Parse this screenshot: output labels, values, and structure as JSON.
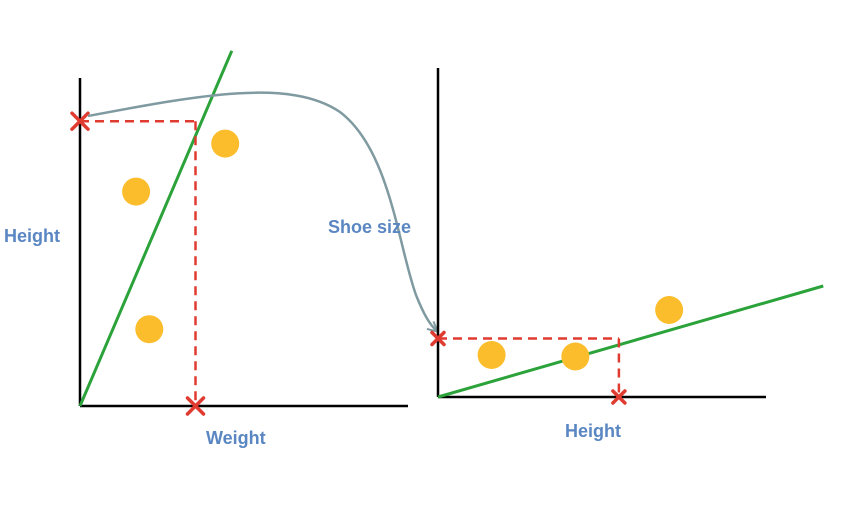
{
  "colors": {
    "axis": "#000000",
    "fit_line": "#2ca33a",
    "points": "#fbbd2b",
    "projection": "#e03b30",
    "marker": "#e03b30",
    "arrow": "#7f9aa0",
    "label": "#5a86c2"
  },
  "left_plot": {
    "y_label": "Height",
    "x_label": "Weight",
    "points": [
      {
        "weight": 1.7,
        "height": 6.7
      },
      {
        "weight": 4.4,
        "height": 8.2
      },
      {
        "weight": 2.1,
        "height": 2.4
      }
    ],
    "fit_line": [
      {
        "weight": 0,
        "height": 0
      },
      {
        "weight": 4.6,
        "height": 11.1
      }
    ],
    "query_weight": 3.5,
    "predicted_height": 8.9
  },
  "right_plot": {
    "y_label": "Shoe size",
    "x_label": "Height",
    "points": [
      {
        "height": 1.6,
        "shoe_size": 1.4
      },
      {
        "height": 4.1,
        "shoe_size": 1.35
      },
      {
        "height": 6.9,
        "shoe_size": 2.9
      }
    ],
    "fit_line": [
      {
        "height": 0,
        "shoe_size": 0
      },
      {
        "height": 11.5,
        "shoe_size": 3.7
      }
    ],
    "query_height": 5.4,
    "predicted_shoe_size": 1.95
  }
}
